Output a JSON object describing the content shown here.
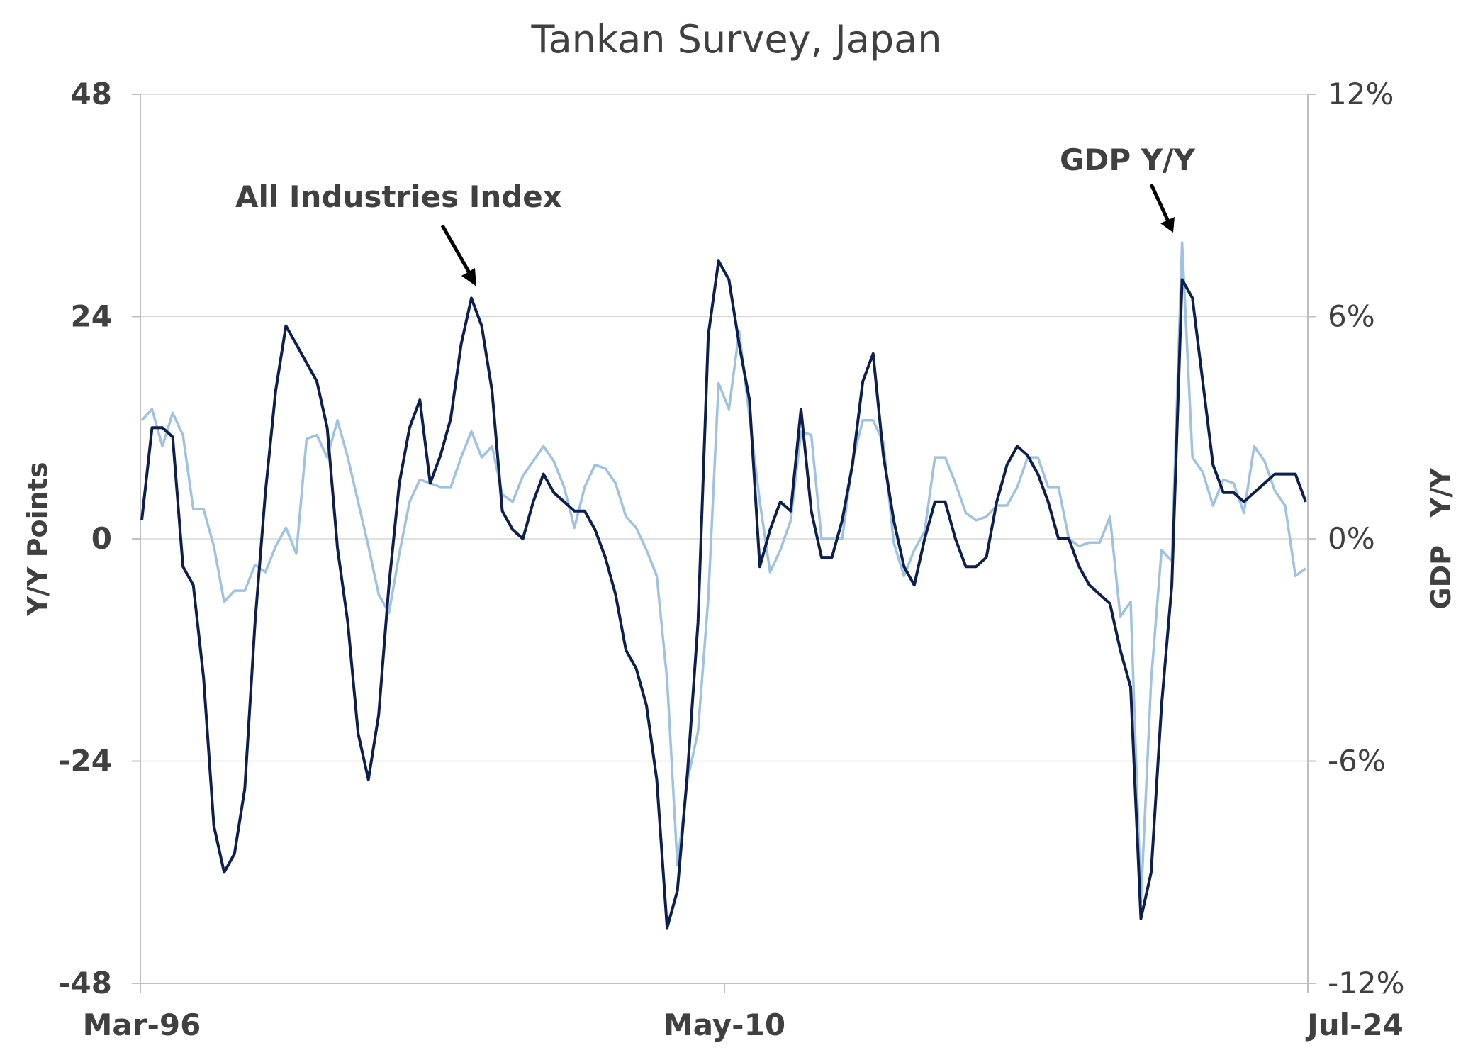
{
  "chart_data": {
    "type": "line",
    "title": "Tankan  Survey, Japan",
    "ylabel": "Y/Y Points",
    "y2label": "GDP   Y/Y",
    "ylim": [
      -48,
      48
    ],
    "y2lim": [
      -12,
      12
    ],
    "yticks": [
      "48",
      "24",
      "0",
      "-24",
      "-48"
    ],
    "y2ticks": [
      "12%",
      "6%",
      "0%",
      "-6%",
      "-12%"
    ],
    "xticks": [
      "Mar-96",
      "May-10",
      "Jul-24"
    ],
    "grid": true,
    "annotations": [
      {
        "text": "All Industries Index"
      },
      {
        "text": "GDP Y/Y"
      }
    ],
    "series": [
      {
        "axis": "left",
        "color": "#0d1f4f",
        "values": [
          2,
          12,
          12,
          11,
          -3,
          -5,
          -15,
          -31,
          -36,
          -34,
          -27,
          -9,
          5,
          16,
          23,
          21,
          19,
          17,
          12,
          -1,
          -9,
          -21,
          -26,
          -19,
          -5,
          6,
          12,
          15,
          6,
          9,
          13,
          21,
          26,
          23,
          16,
          3,
          1,
          0,
          4,
          7,
          5,
          4,
          3,
          3,
          1,
          -2,
          -6,
          -12,
          -14,
          -18,
          -26,
          -42,
          -38,
          -25,
          -9,
          22,
          30,
          28,
          21,
          15,
          -3,
          1,
          4,
          3,
          14,
          3,
          -2,
          -2,
          2,
          8,
          17,
          20,
          9,
          2,
          -3,
          -5,
          0,
          4,
          4,
          0,
          -3,
          -3,
          -2,
          4,
          8,
          10,
          9,
          7,
          4,
          0,
          0,
          -3,
          -5,
          -6,
          -7,
          -12,
          -16,
          -41,
          -36,
          -18,
          -5,
          28,
          26,
          17,
          8,
          5,
          5,
          4,
          5,
          6,
          7,
          7,
          7,
          4
        ]
      },
      {
        "axis": "right",
        "color": "#9ec2e0",
        "values": [
          3.2,
          3.5,
          2.5,
          3.4,
          2.8,
          0.8,
          0.8,
          -0.2,
          -1.7,
          -1.4,
          -1.4,
          -0.7,
          -0.9,
          -0.2,
          0.3,
          -0.4,
          2.7,
          2.8,
          2.2,
          3.2,
          2.2,
          1.0,
          -0.2,
          -1.5,
          -2.0,
          -0.4,
          1.0,
          1.6,
          1.5,
          1.4,
          1.4,
          2.2,
          2.9,
          2.2,
          2.5,
          1.2,
          1.0,
          1.7,
          2.1,
          2.5,
          2.1,
          1.4,
          0.3,
          1.4,
          2.0,
          1.9,
          1.5,
          0.6,
          0.3,
          -0.3,
          -1.0,
          -3.8,
          -8.8,
          -6.5,
          -5.2,
          -1.6,
          4.2,
          3.5,
          5.6,
          3.3,
          1.0,
          -0.9,
          -0.3,
          0.5,
          2.9,
          2.8,
          0.0,
          0.0,
          0.0,
          2.1,
          3.2,
          3.2,
          2.6,
          -0.1,
          -1.0,
          -0.3,
          0.2,
          2.2,
          2.2,
          1.5,
          0.7,
          0.5,
          0.6,
          0.9,
          0.9,
          1.4,
          2.2,
          2.2,
          1.4,
          1.4,
          0.0,
          -0.2,
          -0.1,
          -0.1,
          0.6,
          -2.1,
          -1.7,
          -9.8,
          -3.8,
          -0.3,
          -0.6,
          8.0,
          2.2,
          1.8,
          0.9,
          1.6,
          1.5,
          0.7,
          2.5,
          2.1,
          1.3,
          0.9,
          -1.0,
          -0.8
        ]
      }
    ]
  }
}
